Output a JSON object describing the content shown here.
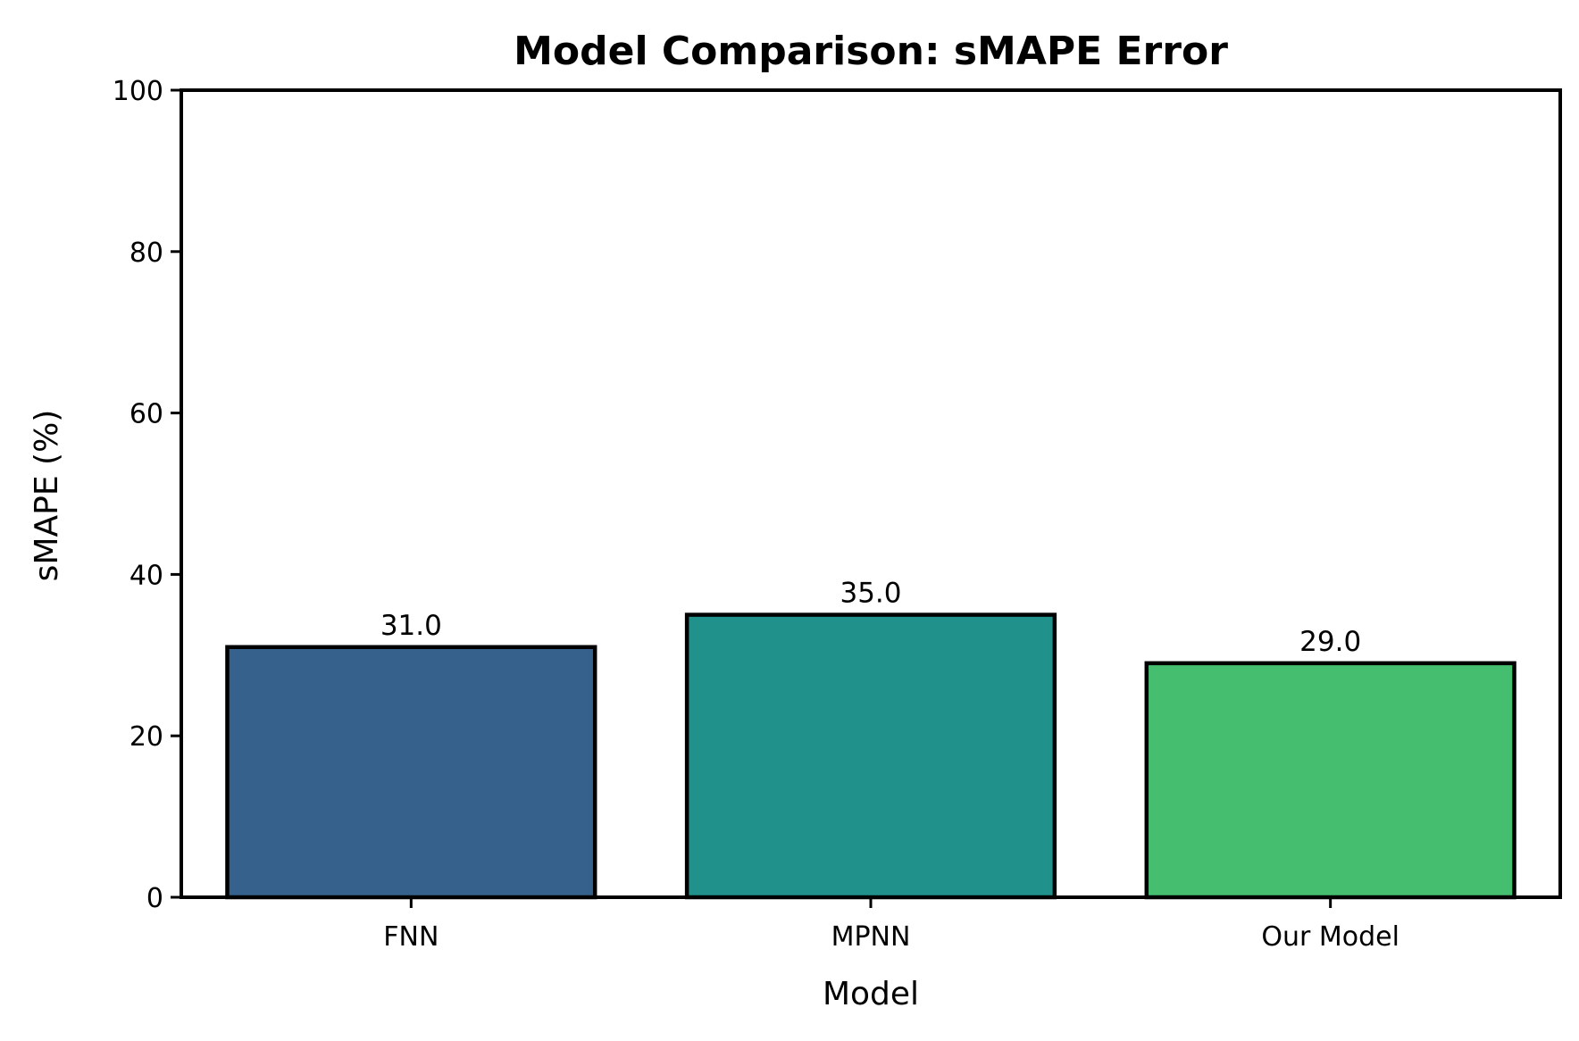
{
  "chart_data": {
    "type": "bar",
    "title": "Model Comparison: sMAPE Error",
    "xlabel": "Model",
    "ylabel": "sMAPE (%)",
    "categories": [
      "FNN",
      "MPNN",
      "Our Model"
    ],
    "values": [
      31.0,
      35.0,
      29.0
    ],
    "value_labels": [
      "31.0",
      "35.0",
      "29.0"
    ],
    "ylim": [
      0,
      100
    ],
    "yticks": [
      0,
      20,
      40,
      60,
      80,
      100
    ],
    "ytick_labels": [
      "0",
      "20",
      "40",
      "60",
      "80",
      "100"
    ],
    "grid": false,
    "legend": "none",
    "colors": [
      "#36618c",
      "#21928b",
      "#45be6f"
    ],
    "edge_color": "#000000"
  }
}
